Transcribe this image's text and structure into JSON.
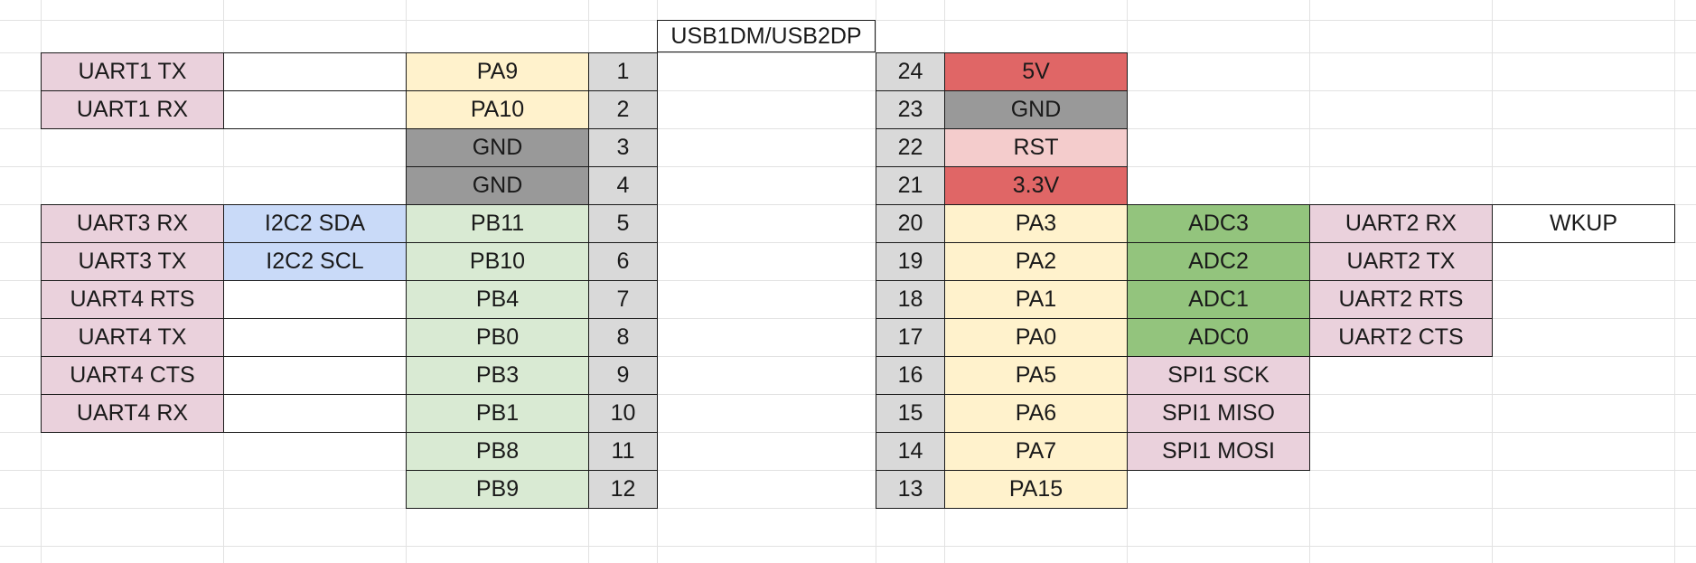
{
  "header": {
    "label": "USB1DM/USB2DP"
  },
  "colors": {
    "uart": "#ead1dc",
    "spi": "#ead1dc",
    "i2c": "#c9daf8",
    "pa": "#fff2cc",
    "pb": "#d9ead3",
    "gnd": "#999999",
    "pin": "#d9d9d9",
    "power": "#e06666",
    "rst": "#f4cccc",
    "adc": "#93c47d",
    "none": "#ffffff"
  },
  "left_pins": [
    {
      "pin": "1",
      "name": "PA9",
      "name_color": "pa",
      "func1": "",
      "func1_color": "none",
      "func2": "UART1 TX",
      "func2_color": "uart"
    },
    {
      "pin": "2",
      "name": "PA10",
      "name_color": "pa",
      "func1": "",
      "func1_color": "none",
      "func2": "UART1 RX",
      "func2_color": "uart"
    },
    {
      "pin": "3",
      "name": "GND",
      "name_color": "gnd",
      "func1": null,
      "func1_color": null,
      "func2": null,
      "func2_color": null
    },
    {
      "pin": "4",
      "name": "GND",
      "name_color": "gnd",
      "func1": null,
      "func1_color": null,
      "func2": null,
      "func2_color": null
    },
    {
      "pin": "5",
      "name": "PB11",
      "name_color": "pb",
      "func1": "I2C2 SDA",
      "func1_color": "i2c",
      "func2": "UART3 RX",
      "func2_color": "uart"
    },
    {
      "pin": "6",
      "name": "PB10",
      "name_color": "pb",
      "func1": "I2C2 SCL",
      "func1_color": "i2c",
      "func2": "UART3 TX",
      "func2_color": "uart"
    },
    {
      "pin": "7",
      "name": "PB4",
      "name_color": "pb",
      "func1": "",
      "func1_color": "none",
      "func2": "UART4 RTS",
      "func2_color": "uart"
    },
    {
      "pin": "8",
      "name": "PB0",
      "name_color": "pb",
      "func1": "",
      "func1_color": "none",
      "func2": "UART4 TX",
      "func2_color": "uart"
    },
    {
      "pin": "9",
      "name": "PB3",
      "name_color": "pb",
      "func1": "",
      "func1_color": "none",
      "func2": "UART4 CTS",
      "func2_color": "uart"
    },
    {
      "pin": "10",
      "name": "PB1",
      "name_color": "pb",
      "func1": "",
      "func1_color": "none",
      "func2": "UART4 RX",
      "func2_color": "uart"
    },
    {
      "pin": "11",
      "name": "PB8",
      "name_color": "pb",
      "func1": null,
      "func1_color": null,
      "func2": null,
      "func2_color": null
    },
    {
      "pin": "12",
      "name": "PB9",
      "name_color": "pb",
      "func1": null,
      "func1_color": null,
      "func2": null,
      "func2_color": null
    }
  ],
  "right_pins": [
    {
      "pin": "24",
      "name": "5V",
      "name_color": "power",
      "func1": null,
      "func1_color": null,
      "func2": null,
      "func2_color": null,
      "func3": null,
      "func3_color": null
    },
    {
      "pin": "23",
      "name": "GND",
      "name_color": "gnd",
      "func1": null,
      "func1_color": null,
      "func2": null,
      "func2_color": null,
      "func3": null,
      "func3_color": null
    },
    {
      "pin": "22",
      "name": "RST",
      "name_color": "rst",
      "func1": null,
      "func1_color": null,
      "func2": null,
      "func2_color": null,
      "func3": null,
      "func3_color": null
    },
    {
      "pin": "21",
      "name": "3.3V",
      "name_color": "power",
      "func1": null,
      "func1_color": null,
      "func2": null,
      "func2_color": null,
      "func3": null,
      "func3_color": null
    },
    {
      "pin": "20",
      "name": "PA3",
      "name_color": "pa",
      "func1": "ADC3",
      "func1_color": "adc",
      "func2": "UART2 RX",
      "func2_color": "uart",
      "func3": "WKUP",
      "func3_color": "none"
    },
    {
      "pin": "19",
      "name": "PA2",
      "name_color": "pa",
      "func1": "ADC2",
      "func1_color": "adc",
      "func2": "UART2 TX",
      "func2_color": "uart",
      "func3": null,
      "func3_color": null
    },
    {
      "pin": "18",
      "name": "PA1",
      "name_color": "pa",
      "func1": "ADC1",
      "func1_color": "adc",
      "func2": "UART2 RTS",
      "func2_color": "uart",
      "func3": null,
      "func3_color": null
    },
    {
      "pin": "17",
      "name": "PA0",
      "name_color": "pa",
      "func1": "ADC0",
      "func1_color": "adc",
      "func2": "UART2 CTS",
      "func2_color": "uart",
      "func3": null,
      "func3_color": null
    },
    {
      "pin": "16",
      "name": "PA5",
      "name_color": "pa",
      "func1": "SPI1 SCK",
      "func1_color": "spi",
      "func2": null,
      "func2_color": null,
      "func3": null,
      "func3_color": null
    },
    {
      "pin": "15",
      "name": "PA6",
      "name_color": "pa",
      "func1": "SPI1 MISO",
      "func1_color": "spi",
      "func2": null,
      "func2_color": null,
      "func3": null,
      "func3_color": null
    },
    {
      "pin": "14",
      "name": "PA7",
      "name_color": "pa",
      "func1": "SPI1 MOSI",
      "func1_color": "spi",
      "func2": null,
      "func2_color": null,
      "func3": null,
      "func3_color": null
    },
    {
      "pin": "13",
      "name": "PA15",
      "name_color": "pa",
      "func1": null,
      "func1_color": null,
      "func2": null,
      "func2_color": null,
      "func3": null,
      "func3_color": null
    }
  ]
}
